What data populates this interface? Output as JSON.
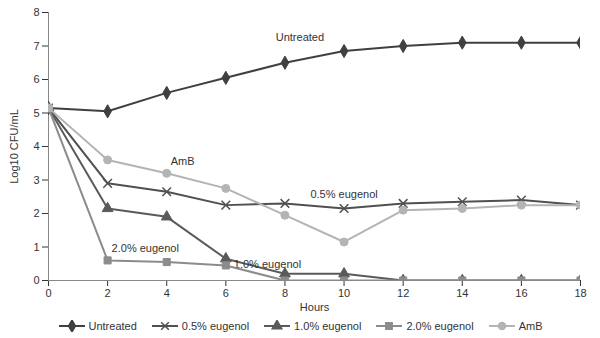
{
  "chart_data": {
    "type": "line",
    "x_label": "Hours",
    "y_label": "Log10 CFU/mL",
    "x": [
      0,
      2,
      4,
      6,
      8,
      10,
      12,
      14,
      16,
      18
    ],
    "xlim": [
      0,
      18
    ],
    "xticks": [
      0,
      2,
      4,
      6,
      8,
      10,
      12,
      14,
      16,
      18
    ],
    "ylim": [
      0,
      8
    ],
    "yticks": [
      0,
      1,
      2,
      3,
      4,
      5,
      6,
      7,
      8
    ],
    "grid": false,
    "legend": "bottom",
    "series": [
      {
        "name": "Untreated",
        "color": "#404040",
        "marker": "diamond",
        "values": [
          5.15,
          5.05,
          5.6,
          6.05,
          6.5,
          6.85,
          7.0,
          7.1,
          7.1,
          7.1
        ]
      },
      {
        "name": "0.5% eugenol",
        "color": "#505050",
        "marker": "x",
        "values": [
          5.15,
          2.9,
          2.65,
          2.25,
          2.3,
          2.15,
          2.3,
          2.35,
          2.4,
          2.25
        ]
      },
      {
        "name": "1.0% eugenol",
        "color": "#5a5a5a",
        "marker": "triangle",
        "values": [
          5.15,
          2.15,
          1.9,
          0.65,
          0.2,
          0.2,
          0,
          0,
          0,
          0
        ]
      },
      {
        "name": "2.0% eugenol",
        "color": "#8c8c8c",
        "marker": "square",
        "values": [
          5.15,
          0.6,
          0.55,
          0.45,
          0,
          0,
          0,
          0,
          0,
          0
        ]
      },
      {
        "name": "AmB",
        "color": "#b4b4b4",
        "marker": "circle",
        "values": [
          5.15,
          3.6,
          3.2,
          2.75,
          1.95,
          1.15,
          2.1,
          2.15,
          2.25,
          2.25
        ]
      }
    ]
  }
}
